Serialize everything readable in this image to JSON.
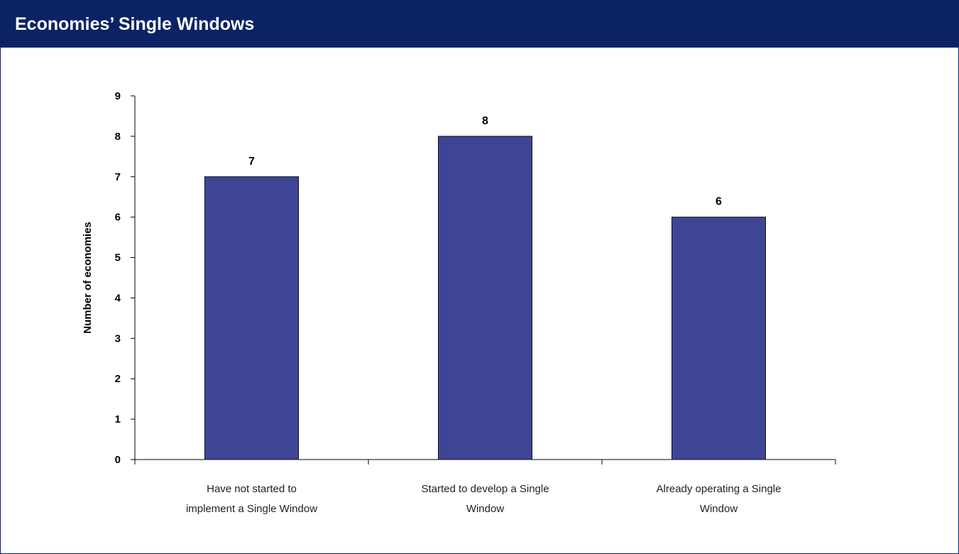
{
  "header": {
    "title": "Economies’ Single Windows"
  },
  "colors": {
    "header_bg": "#0b2265",
    "bar_fill": "#3f4595",
    "bar_stroke": "#111111"
  },
  "chart_data": {
    "type": "bar",
    "title": "Economies’ Single Windows",
    "xlabel": "",
    "ylabel": "Number of economies",
    "ylim": [
      0,
      9
    ],
    "yticks": [
      0,
      1,
      2,
      3,
      4,
      5,
      6,
      7,
      8,
      9
    ],
    "grid": false,
    "categories": [
      [
        "Have not started to",
        "implement a Single Window"
      ],
      [
        "Started to develop a Single",
        "Window"
      ],
      [
        "Already operating a Single",
        "Window"
      ]
    ],
    "values": [
      7,
      8,
      6
    ],
    "data_labels": [
      "7",
      "8",
      "6"
    ]
  }
}
